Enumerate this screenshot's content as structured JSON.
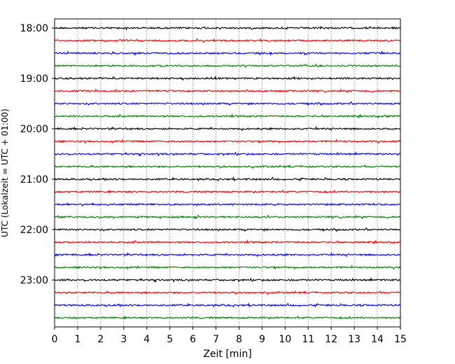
{
  "chart_data": {
    "type": "line",
    "title": "",
    "xlabel": "Zeit  [min]",
    "ylabel": "UTC (Lokalzeit = UTC + 01:00)",
    "xlim": [
      0,
      15
    ],
    "x_ticks": [
      "0",
      "1",
      "2",
      "3",
      "4",
      "5",
      "6",
      "7",
      "8",
      "9",
      "10",
      "11",
      "12",
      "13",
      "14",
      "15"
    ],
    "y_ticks": [
      "18:00",
      "19:00",
      "20:00",
      "21:00",
      "22:00",
      "23:00"
    ],
    "grid": "vertical dotted",
    "trace_interval_minutes": 15,
    "traces": [
      {
        "time": "18:00",
        "color": "#000000"
      },
      {
        "time": "18:15",
        "color": "#ff0000"
      },
      {
        "time": "18:30",
        "color": "#0000ff"
      },
      {
        "time": "18:45",
        "color": "#008000"
      },
      {
        "time": "19:00",
        "color": "#000000"
      },
      {
        "time": "19:15",
        "color": "#ff0000"
      },
      {
        "time": "19:30",
        "color": "#0000ff"
      },
      {
        "time": "19:45",
        "color": "#008000"
      },
      {
        "time": "20:00",
        "color": "#000000"
      },
      {
        "time": "20:15",
        "color": "#ff0000"
      },
      {
        "time": "20:30",
        "color": "#0000ff"
      },
      {
        "time": "20:45",
        "color": "#008000"
      },
      {
        "time": "21:00",
        "color": "#000000"
      },
      {
        "time": "21:15",
        "color": "#ff0000"
      },
      {
        "time": "21:30",
        "color": "#0000ff"
      },
      {
        "time": "21:45",
        "color": "#008000"
      },
      {
        "time": "22:00",
        "color": "#000000"
      },
      {
        "time": "22:15",
        "color": "#ff0000"
      },
      {
        "time": "22:30",
        "color": "#0000ff"
      },
      {
        "time": "22:45",
        "color": "#008000"
      },
      {
        "time": "23:00",
        "color": "#000000"
      },
      {
        "time": "23:15",
        "color": "#ff0000"
      },
      {
        "time": "23:30",
        "color": "#0000ff"
      },
      {
        "time": "23:45",
        "color": "#008000"
      }
    ]
  }
}
